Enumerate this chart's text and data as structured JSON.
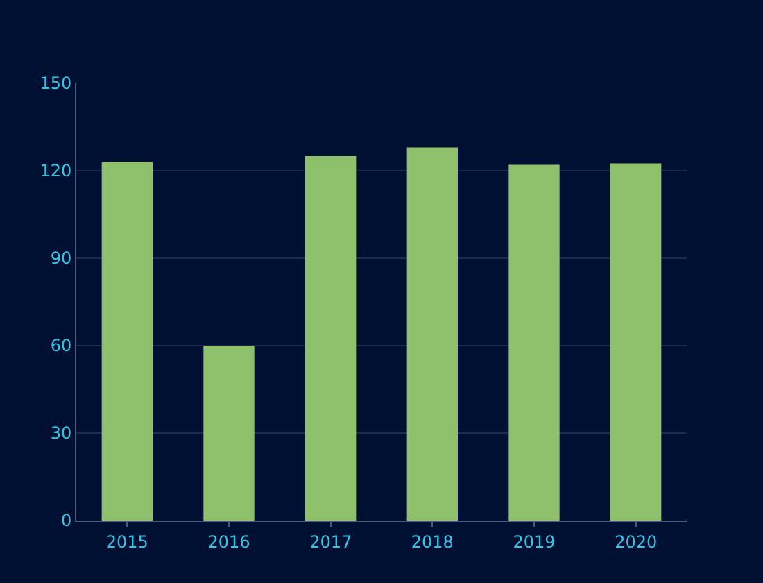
{
  "chart_data": {
    "type": "bar",
    "categories": [
      "2015",
      "2016",
      "2017",
      "2018",
      "2019",
      "2020"
    ],
    "values": [
      123,
      60,
      125,
      128,
      122,
      122.5
    ],
    "color": "#8fc06c",
    "ylim": [
      0,
      150
    ],
    "yticks": [
      0,
      30,
      60,
      90,
      120,
      150
    ],
    "grid": "y",
    "legend": false
  }
}
